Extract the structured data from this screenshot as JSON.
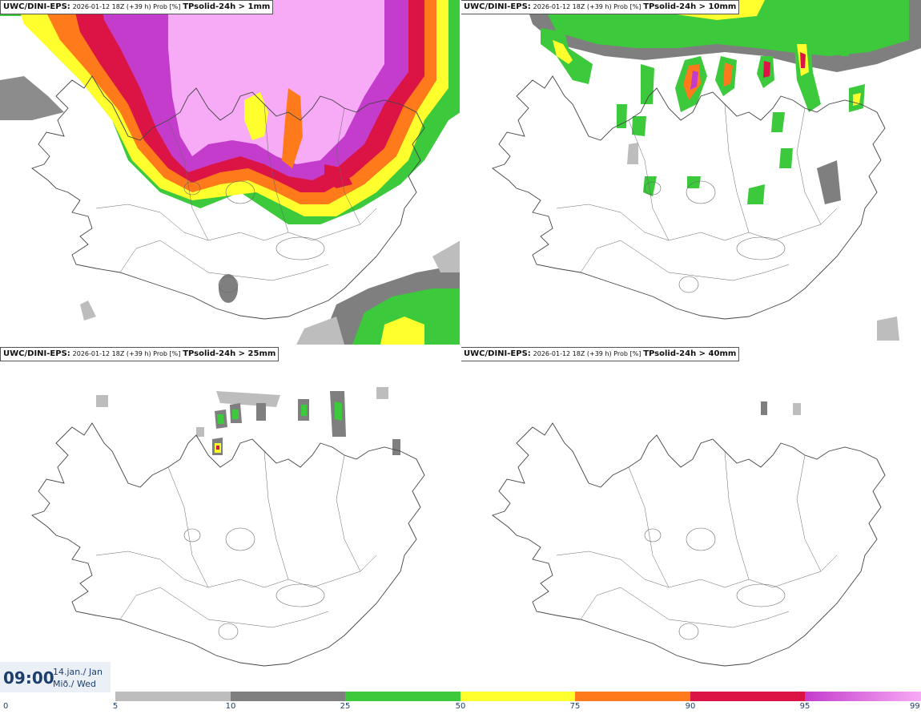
{
  "panels": [
    {
      "model": "UWC/DINI-EPS:",
      "run": "2026-01-12 18Z (+39 h) Prob [%]",
      "variable": "TPsolid-24h > 1mm"
    },
    {
      "model": "UWC/DINI-EPS:",
      "run": "2026-01-12 18Z (+39 h) Prob [%]",
      "variable": "TPsolid-24h > 10mm"
    },
    {
      "model": "UWC/DINI-EPS:",
      "run": "2026-01-12 18Z (+39 h) Prob [%]",
      "variable": "TPsolid-24h > 25mm"
    },
    {
      "model": "UWC/DINI-EPS:",
      "run": "2026-01-12 18Z (+39 h) Prob [%]",
      "variable": "TPsolid-24h > 40mm"
    }
  ],
  "valid_time": {
    "time": "09:00",
    "date_line1": "14.jan./ Jan",
    "date_line2": "Mið./ Wed"
  },
  "legend": {
    "ticks": [
      "0",
      "5",
      "10",
      "25",
      "50",
      "75",
      "90",
      "95",
      "99"
    ],
    "colors": [
      "#bdbdbd",
      "#7f7f7f",
      "#3cc93c",
      "#ffff2e",
      "#ff7a1a",
      "#dc1446",
      "#c43ccc",
      "#f7aaf5"
    ]
  }
}
